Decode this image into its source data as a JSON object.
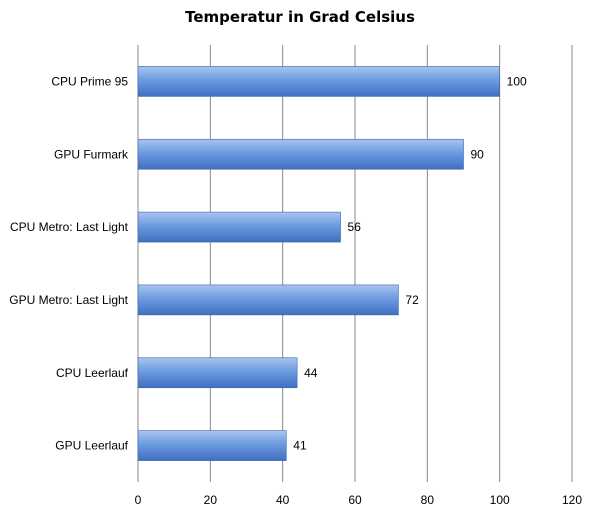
{
  "chart_data": {
    "type": "bar",
    "orientation": "horizontal",
    "title": "Temperatur  in Grad Celsius",
    "categories": [
      "CPU Prime 95",
      "GPU Furmark",
      "CPU Metro: Last Light",
      "GPU Metro: Last Light",
      "CPU Leerlauf",
      "GPU Leerlauf"
    ],
    "values": [
      100,
      90,
      56,
      72,
      44,
      41
    ],
    "data_labels": [
      "100",
      "90",
      "56",
      "72",
      "44",
      "41"
    ],
    "xlim": [
      0,
      120
    ],
    "x_ticks": [
      "0",
      "20",
      "40",
      "60",
      "80",
      "100",
      "120"
    ],
    "grid": true,
    "bar_color": "#4f81bd"
  }
}
